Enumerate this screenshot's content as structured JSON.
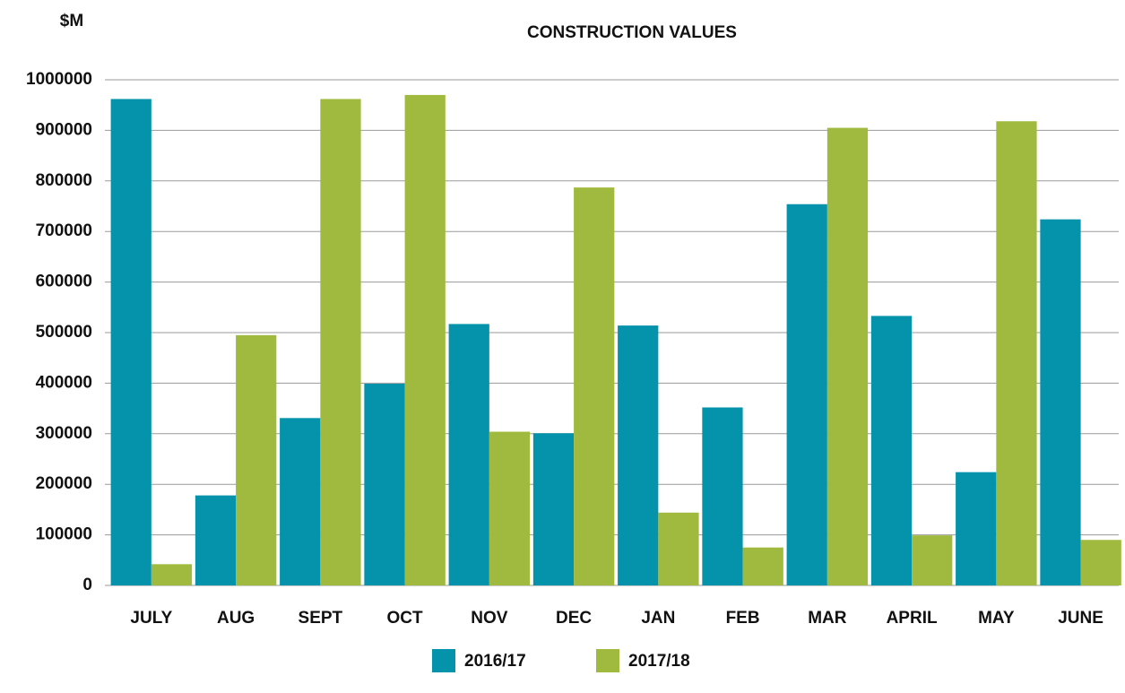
{
  "chart_data": {
    "type": "bar",
    "title": "CONSTRUCTION VALUES",
    "y_label": "$M",
    "categories": [
      "JULY",
      "AUG",
      "SEPT",
      "OCT",
      "NOV",
      "DEC",
      "JAN",
      "FEB",
      "MAR",
      "APRIL",
      "MAY",
      "JUNE"
    ],
    "series": [
      {
        "name": "2016/17",
        "color": "#0493ab",
        "values": [
          962000,
          178000,
          331000,
          399000,
          517000,
          301000,
          514000,
          352000,
          754000,
          533000,
          224000,
          724000
        ]
      },
      {
        "name": "2017/18",
        "color": "#9fba3e",
        "values": [
          42000,
          495000,
          962000,
          970000,
          304000,
          787000,
          144000,
          75000,
          905000,
          99000,
          918000,
          90000
        ]
      }
    ],
    "ylim": [
      0,
      1000000
    ],
    "yticks": [
      0,
      100000,
      200000,
      300000,
      400000,
      500000,
      600000,
      700000,
      800000,
      900000,
      1000000
    ],
    "grid": true,
    "legend": "bottom"
  }
}
